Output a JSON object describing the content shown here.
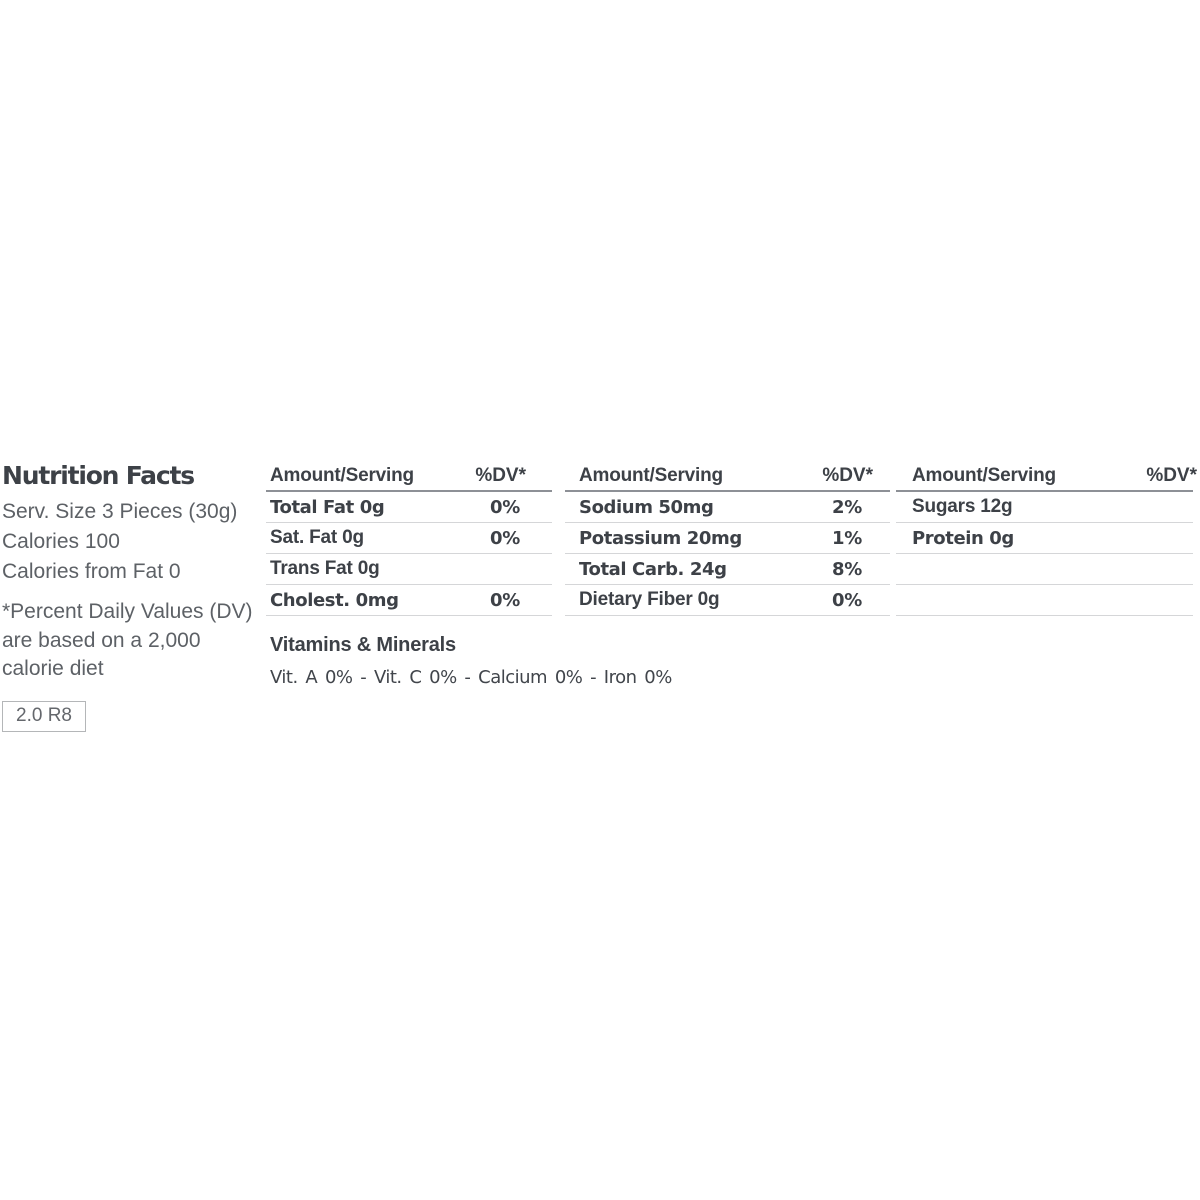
{
  "left_panel": {
    "title": "Nutrition Facts",
    "serving_size": "Serv. Size 3 Pieces (30g)",
    "calories": "Calories 100",
    "calories_from_fat": "Calories from Fat 0",
    "footnote": "*Percent Daily Values (DV) are based on a 2,000 calorie diet",
    "version_tag": "2.0 R8"
  },
  "tables": [
    {
      "amount_header": "Amount/Serving",
      "dv_header": "%DV*",
      "rows": [
        {
          "label": "Total Fat 0g",
          "dv": "0%"
        },
        {
          "label": "Sat. Fat 0g",
          "dv": "0%"
        },
        {
          "label": "Trans Fat 0g",
          "dv": ""
        },
        {
          "label": "Cholest. 0mg",
          "dv": "0%"
        }
      ]
    },
    {
      "amount_header": "Amount/Serving",
      "dv_header": "%DV*",
      "rows": [
        {
          "label": "Sodium 50mg",
          "dv": "2%"
        },
        {
          "label": "Potassium 20mg",
          "dv": "1%"
        },
        {
          "label": "Total Carb. 24g",
          "dv": "8%"
        },
        {
          "label": "Dietary Fiber 0g",
          "dv": "0%"
        }
      ]
    },
    {
      "amount_header": "Amount/Serving",
      "dv_header": "%DV*",
      "rows": [
        {
          "label": "Sugars 12g",
          "dv": ""
        },
        {
          "label": "Protein 0g",
          "dv": ""
        },
        {
          "label": "",
          "dv": ""
        },
        {
          "label": "",
          "dv": ""
        }
      ]
    }
  ],
  "vitamins": {
    "heading": "Vitamins & Minerals",
    "line": "Vit. A 0% - Vit. C 0% - Calcium 0% - Iron 0%"
  },
  "colors": {
    "text_dark": "#3d4147",
    "text_muted": "#5d6166",
    "header_rule": "#8d9096",
    "row_rule": "#d5d6d8",
    "box_border": "#b4b6b8",
    "background": "#ffffff"
  }
}
